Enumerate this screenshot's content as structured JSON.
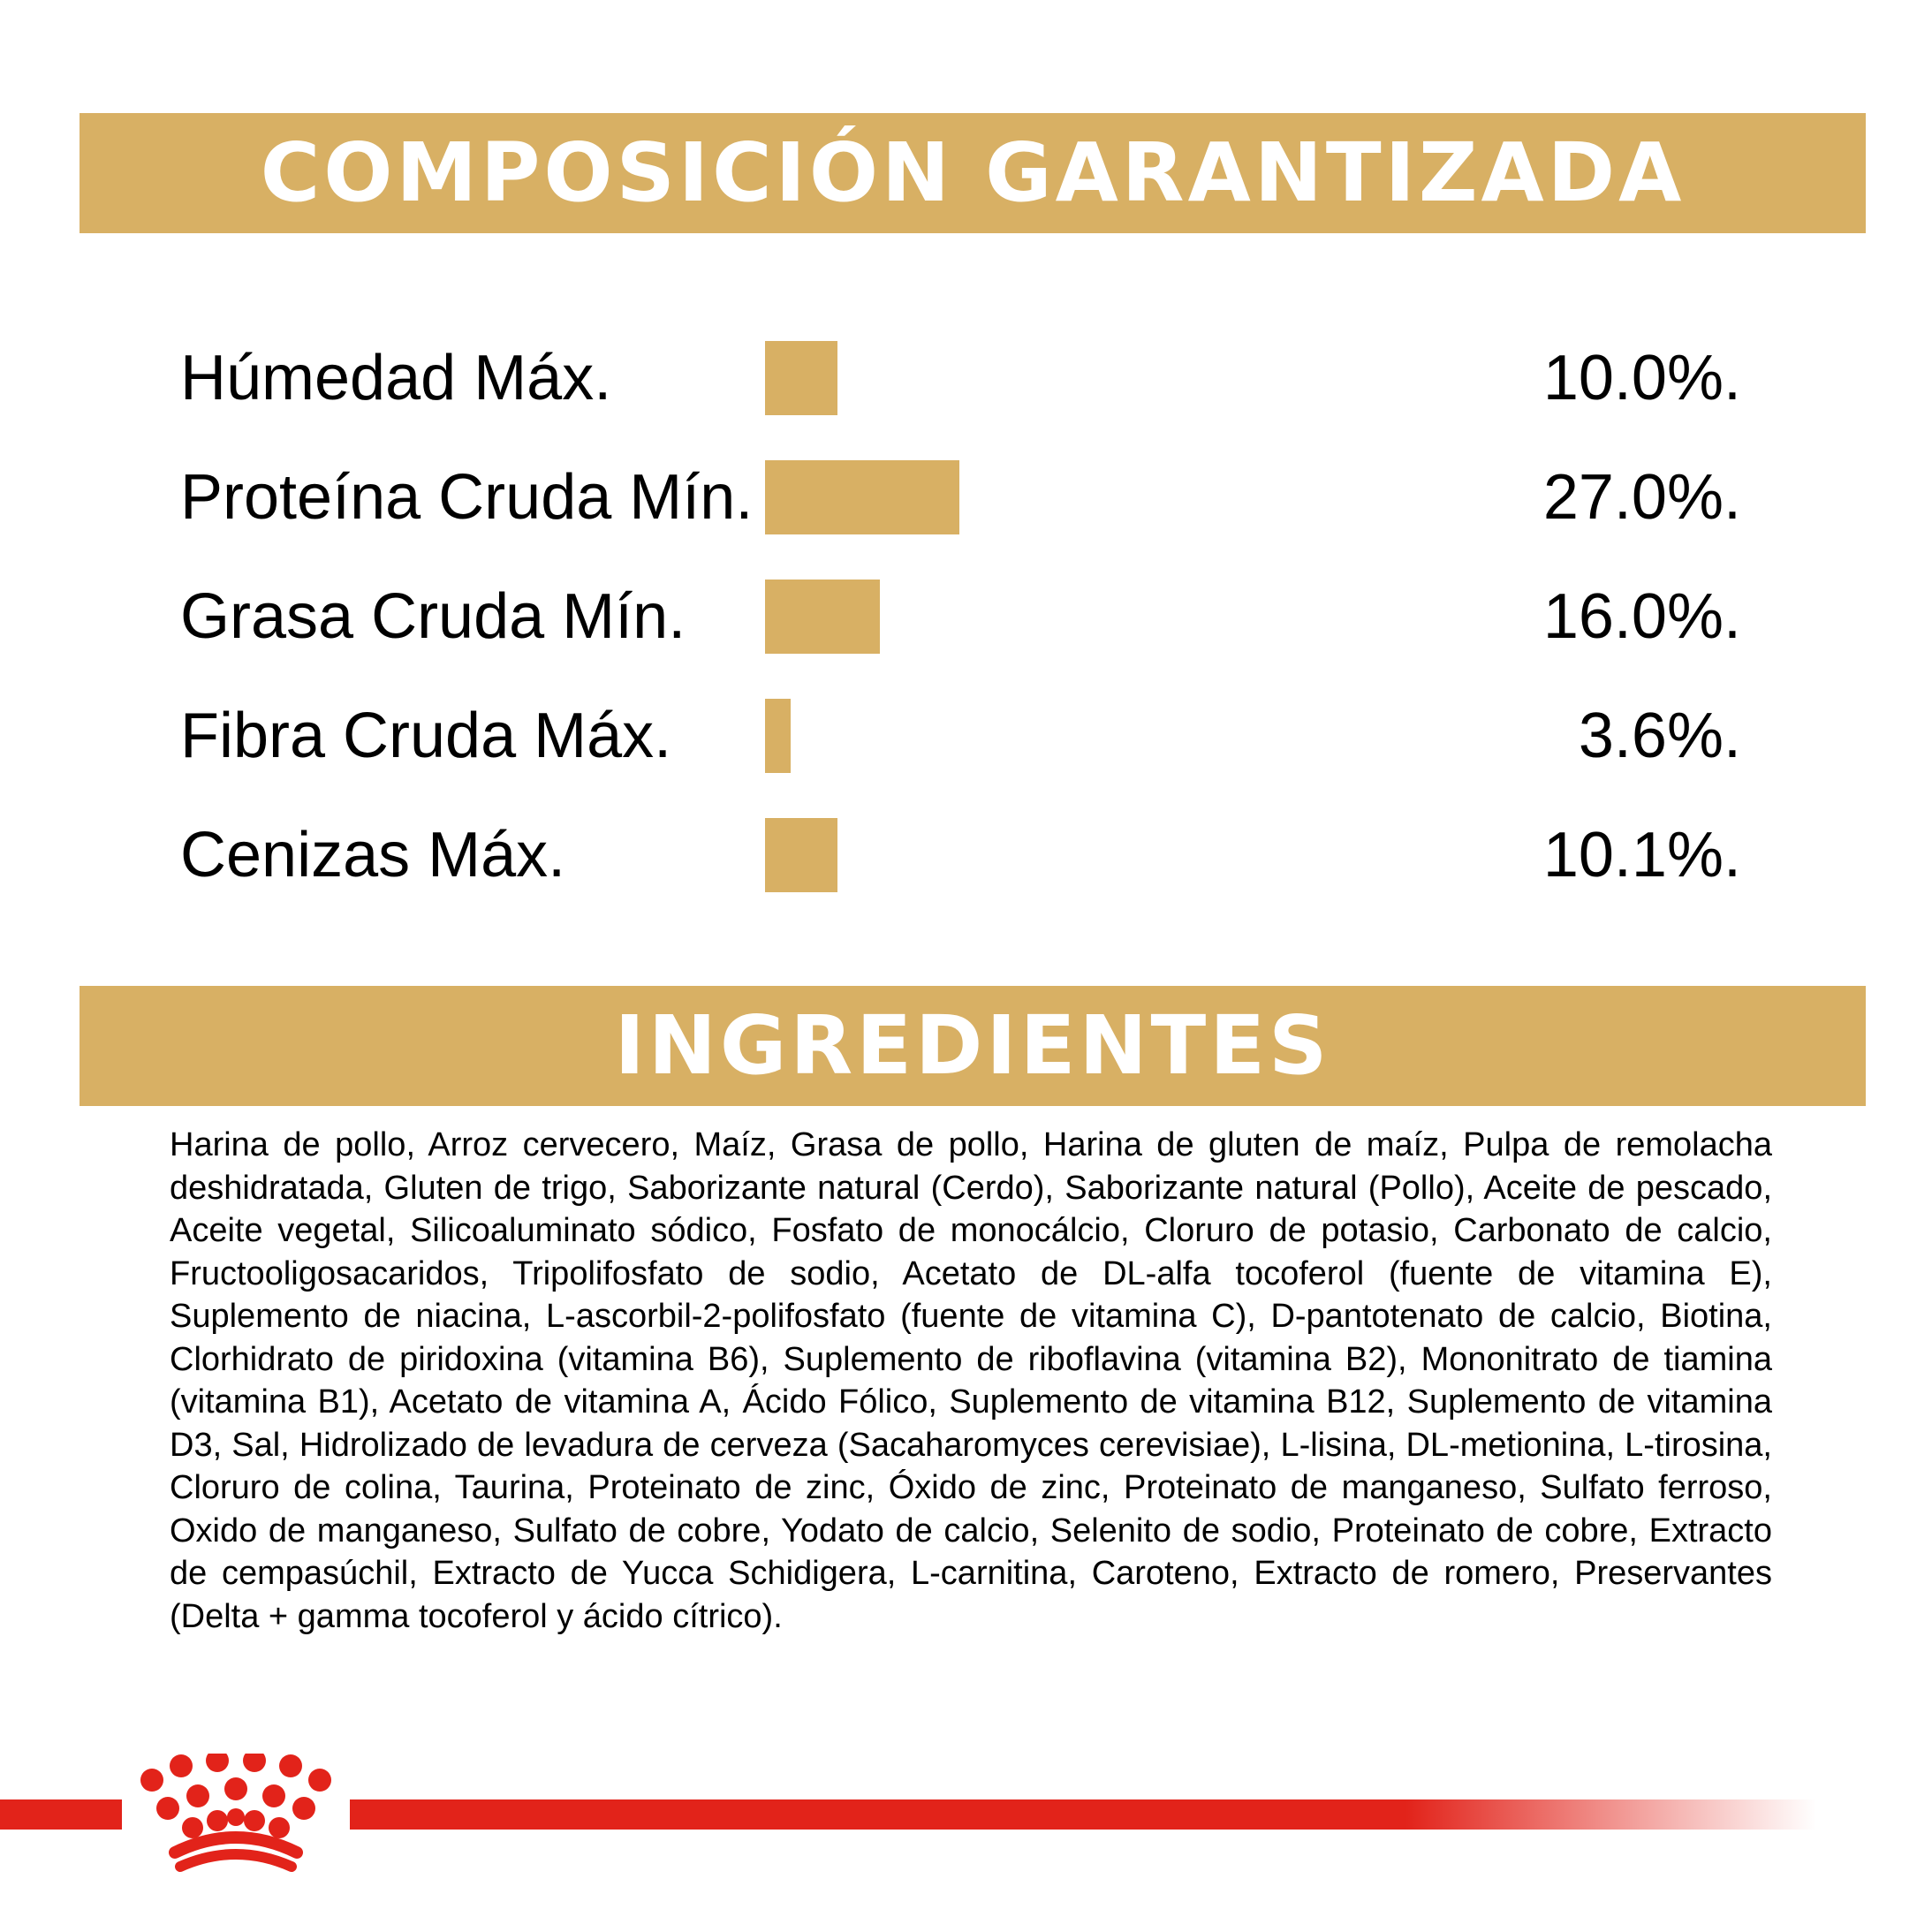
{
  "colors": {
    "gold": "#d8b064",
    "brand_red": "#e2231a",
    "text": "#000000",
    "banner_text": "#ffffff"
  },
  "composition": {
    "title": "COMPOSICIÓN GARANTIZADA",
    "rows": [
      {
        "label": "Húmedad Máx.",
        "value": "10.0%.",
        "percent": 10.0
      },
      {
        "label": "Proteína Cruda Mín.",
        "value": "27.0%.",
        "percent": 27.0
      },
      {
        "label": "Grasa Cruda Mín.",
        "value": "16.0%.",
        "percent": 16.0
      },
      {
        "label": "Fibra Cruda Máx.",
        "value": "3.6%.",
        "percent": 3.6
      },
      {
        "label": "Cenizas Máx.",
        "value": "10.1%.",
        "percent": 10.1
      }
    ]
  },
  "ingredients": {
    "title": "INGREDIENTES",
    "text": "Harina de pollo, Arroz cervecero, Maíz, Grasa de pollo, Harina de gluten de maíz, Pulpa de remolacha deshidratada, Gluten de trigo, Saborizante natural (Cerdo), Saborizante natural (Pollo), Aceite de pescado, Aceite vegetal, Silicoaluminato sódico, Fosfato de monocálcio, Cloruro de potasio, Carbonato de calcio, Fructooligosacaridos, Tripolifosfato de sodio, Acetato de DL-alfa tocoferol (fuente de vitamina E), Suplemento de niacina, L-ascorbil-2-polifosfato (fuente de vitamina C), D-pantotenato de calcio, Biotina, Clorhidrato de piridoxina (vitamina B6), Suplemento de riboflavina (vitamina B2), Mononitrato de tiamina (vitamina B1), Acetato de vitamina A, Ácido Fólico, Suplemento de vitamina B12, Suplemento de vitamina D3, Sal, Hidrolizado de levadura de cerveza (Sacaharomyces cerevisiae), L-lisina, DL-metionina, L-tirosina, Cloruro de colina, Taurina, Proteinato de zinc, Óxido de zinc, Proteinato de manganeso, Sulfato ferroso, Oxido de manganeso, Sulfato de cobre, Yodato de calcio, Selenito de sodio, Proteinato de cobre, Extracto de cempasúchil, Extracto de Yucca Schidigera, L-carnitina, Caroteno, Extracto de romero, Preservantes (Delta + gamma tocoferol y ácido cítrico)."
  },
  "footer": {
    "logo_icon": "crown-logo-icon"
  }
}
